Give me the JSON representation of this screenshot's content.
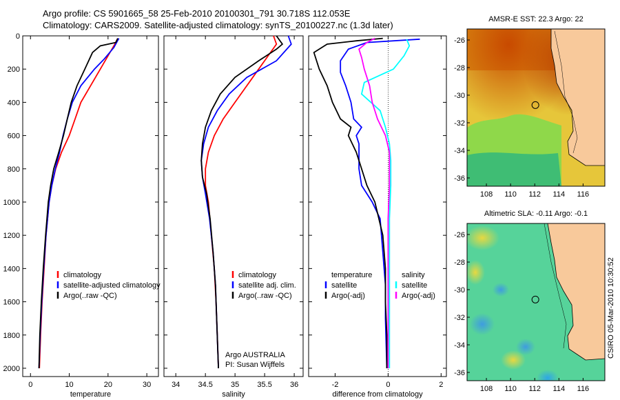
{
  "header": {
    "line1": "Argo profile: CS 5901665_58 25-Feb-2010 20100301_791 30.718S 112.053E",
    "line2": "Climatology: CARS2009. Satellite-adjusted climatology: synTS_20100227.nc (1.3d later)"
  },
  "side_text": "CSIRO 05-Mar-2010 10:30:52",
  "colors": {
    "clim": "#ff0000",
    "sat": "#0000ff",
    "argo": "#000000",
    "cyan": "#00ffff",
    "magenta": "#ff00ff"
  },
  "chart_data": [
    {
      "type": "line",
      "xlabel": "temperature",
      "xticks": [
        "0",
        "10",
        "20",
        "30"
      ],
      "xlim": [
        -2,
        33
      ],
      "ylim": [
        0,
        2050
      ],
      "yticks": [
        "0",
        "200",
        "400",
        "600",
        "800",
        "1000",
        "1200",
        "1400",
        "1600",
        "1800",
        "2000"
      ],
      "legend": [
        "climatology",
        "satellite-adjusted climatology",
        "Argo(..raw -QC)"
      ],
      "series": [
        {
          "name": "climatology",
          "color": "#ff0000",
          "points": [
            [
              22.5,
              15
            ],
            [
              21.5,
              60
            ],
            [
              20,
              120
            ],
            [
              18,
              200
            ],
            [
              15.5,
              300
            ],
            [
              13,
              400
            ],
            [
              11.5,
              500
            ],
            [
              10,
              600
            ],
            [
              8,
              700
            ],
            [
              6.5,
              800
            ],
            [
              5.5,
              900
            ],
            [
              4.8,
              1000
            ],
            [
              4,
              1200
            ],
            [
              3.5,
              1400
            ],
            [
              3,
              1600
            ],
            [
              2.6,
              1800
            ],
            [
              2.3,
              2000
            ]
          ]
        },
        {
          "name": "satellite-adjusted climatology",
          "color": "#0000ff",
          "points": [
            [
              22.8,
              15
            ],
            [
              21.5,
              70
            ],
            [
              19,
              140
            ],
            [
              16.5,
              200
            ],
            [
              13,
              300
            ],
            [
              10.8,
              400
            ],
            [
              9.5,
              500
            ],
            [
              8.4,
              600
            ],
            [
              7.5,
              700
            ],
            [
              6.4,
              800
            ],
            [
              5.5,
              900
            ],
            [
              4.8,
              1000
            ],
            [
              4,
              1200
            ],
            [
              3.4,
              1400
            ],
            [
              2.9,
              1600
            ],
            [
              2.5,
              1800
            ],
            [
              2.2,
              2000
            ]
          ]
        },
        {
          "name": "Argo(..raw -QC)",
          "color": "#000000",
          "points": [
            [
              22.5,
              15
            ],
            [
              22,
              40
            ],
            [
              18,
              60
            ],
            [
              16,
              100
            ],
            [
              14,
              200
            ],
            [
              12,
              300
            ],
            [
              10.5,
              400
            ],
            [
              9.5,
              500
            ],
            [
              8.5,
              600
            ],
            [
              7.3,
              700
            ],
            [
              6,
              800
            ],
            [
              5.2,
              900
            ],
            [
              4.6,
              1000
            ],
            [
              3.9,
              1200
            ],
            [
              3.3,
              1400
            ],
            [
              2.8,
              1600
            ],
            [
              2.4,
              1800
            ],
            [
              2.2,
              2000
            ]
          ]
        }
      ]
    },
    {
      "type": "line",
      "xlabel": "salinity",
      "xticks": [
        "34",
        "34.5",
        "35",
        "35.5",
        "36"
      ],
      "xlim": [
        33.8,
        36.15
      ],
      "ylim": [
        0,
        2050
      ],
      "legend": [
        "climatology",
        "satellite adj. clim.",
        "Argo(..raw -QC)"
      ],
      "annotation": [
        "Argo AUSTRALIA",
        "PI: Susan Wijffels"
      ],
      "series": [
        {
          "name": "climatology",
          "color": "#ff0000",
          "points": [
            [
              35.65,
              0
            ],
            [
              35.7,
              50
            ],
            [
              35.5,
              150
            ],
            [
              35.2,
              300
            ],
            [
              35.0,
              400
            ],
            [
              34.8,
              500
            ],
            [
              34.65,
              600
            ],
            [
              34.55,
              700
            ],
            [
              34.5,
              800
            ],
            [
              34.5,
              900
            ],
            [
              34.55,
              1000
            ],
            [
              34.6,
              1200
            ],
            [
              34.65,
              1400
            ],
            [
              34.68,
              1600
            ],
            [
              34.7,
              1800
            ],
            [
              34.72,
              2000
            ]
          ]
        },
        {
          "name": "satellite adj. clim.",
          "color": "#0000ff",
          "points": [
            [
              35.9,
              0
            ],
            [
              35.95,
              50
            ],
            [
              35.7,
              150
            ],
            [
              35.2,
              250
            ],
            [
              34.9,
              350
            ],
            [
              34.7,
              450
            ],
            [
              34.55,
              550
            ],
            [
              34.47,
              650
            ],
            [
              34.43,
              750
            ],
            [
              34.45,
              850
            ],
            [
              34.5,
              950
            ],
            [
              34.57,
              1100
            ],
            [
              34.63,
              1300
            ],
            [
              34.67,
              1500
            ],
            [
              34.69,
              1700
            ],
            [
              34.71,
              1900
            ],
            [
              34.72,
              2000
            ]
          ]
        },
        {
          "name": "Argo(..raw -QC)",
          "color": "#000000",
          "points": [
            [
              35.7,
              0
            ],
            [
              35.8,
              50
            ],
            [
              35.7,
              80
            ],
            [
              35.4,
              150
            ],
            [
              35.0,
              250
            ],
            [
              34.75,
              350
            ],
            [
              34.6,
              450
            ],
            [
              34.5,
              550
            ],
            [
              34.45,
              650
            ],
            [
              34.43,
              750
            ],
            [
              34.45,
              850
            ],
            [
              34.52,
              950
            ],
            [
              34.58,
              1100
            ],
            [
              34.63,
              1300
            ],
            [
              34.67,
              1500
            ],
            [
              34.69,
              1700
            ],
            [
              34.71,
              1900
            ],
            [
              34.72,
              2000
            ]
          ]
        }
      ]
    },
    {
      "type": "line",
      "xlabel": "difference from climatology",
      "xticks": [
        "-2",
        "0",
        "2"
      ],
      "xlim": [
        -3.0,
        2.2
      ],
      "ylim": [
        0,
        2050
      ],
      "legend_temperature": [
        "temperature",
        "satellite",
        "Argo(-adj)"
      ],
      "legend_salinity": [
        "salinity",
        "satellite",
        "Argo(-adj)"
      ],
      "series": [
        {
          "name": "temperature satellite",
          "color": "#0000ff",
          "points": [
            [
              1.2,
              20
            ],
            [
              -0.8,
              40
            ],
            [
              -1.5,
              80
            ],
            [
              -1.8,
              150
            ],
            [
              -1.8,
              220
            ],
            [
              -1.6,
              300
            ],
            [
              -1.4,
              400
            ],
            [
              -1.3,
              500
            ],
            [
              -1.0,
              550
            ],
            [
              -1.2,
              600
            ],
            [
              -1.1,
              650
            ],
            [
              -1.1,
              800
            ],
            [
              -1.0,
              900
            ],
            [
              -0.6,
              1000
            ],
            [
              -0.3,
              1100
            ],
            [
              -0.2,
              1300
            ],
            [
              -0.1,
              1500
            ],
            [
              -0.1,
              1700
            ],
            [
              -0.05,
              2000
            ]
          ]
        },
        {
          "name": "temperature Argo(-adj)",
          "color": "#000000",
          "points": [
            [
              -0.2,
              15
            ],
            [
              -1.2,
              30
            ],
            [
              -2.3,
              50
            ],
            [
              -2.8,
              100
            ],
            [
              -2.6,
              200
            ],
            [
              -2.3,
              300
            ],
            [
              -2.1,
              400
            ],
            [
              -1.8,
              500
            ],
            [
              -1.4,
              550
            ],
            [
              -1.5,
              600
            ],
            [
              -1.2,
              700
            ],
            [
              -1.0,
              800
            ],
            [
              -0.8,
              900
            ],
            [
              -0.5,
              1000
            ],
            [
              -0.2,
              1200
            ],
            [
              -0.1,
              1400
            ],
            [
              -0.1,
              1600
            ],
            [
              -0.05,
              1800
            ],
            [
              -0.05,
              2000
            ]
          ]
        },
        {
          "name": "salinity satellite",
          "color": "#00ffff",
          "points": [
            [
              0.7,
              20
            ],
            [
              0.8,
              60
            ],
            [
              0.6,
              120
            ],
            [
              0.2,
              200
            ],
            [
              -0.9,
              280
            ],
            [
              -1.0,
              350
            ],
            [
              -0.3,
              450
            ],
            [
              -0.1,
              550
            ],
            [
              0.05,
              650
            ],
            [
              0.1,
              750
            ],
            [
              0.1,
              900
            ],
            [
              0.05,
              1100
            ],
            [
              0.05,
              1400
            ],
            [
              0.05,
              1700
            ],
            [
              0.05,
              2000
            ]
          ]
        },
        {
          "name": "salinity Argo(-adj)",
          "color": "#ff00ff",
          "points": [
            [
              -0.5,
              15
            ],
            [
              -0.8,
              40
            ],
            [
              -1.1,
              80
            ],
            [
              -1.0,
              130
            ],
            [
              -0.9,
              200
            ],
            [
              -0.7,
              300
            ],
            [
              -0.6,
              400
            ],
            [
              -0.4,
              500
            ],
            [
              -0.1,
              600
            ],
            [
              0.05,
              700
            ],
            [
              0.05,
              900
            ],
            [
              0.0,
              1100
            ],
            [
              0.0,
              1400
            ],
            [
              0.0,
              1700
            ],
            [
              0.0,
              2000
            ]
          ]
        }
      ]
    }
  ],
  "maps": [
    {
      "title": "AMSR-E SST: 22.3 Argo: 22",
      "lon_ticks": [
        "108",
        "110",
        "112",
        "114",
        "116"
      ],
      "lat_ticks": [
        "-26",
        "-28",
        "-30",
        "-32",
        "-34",
        "-36"
      ],
      "lon_range": [
        106.4,
        117.8
      ],
      "lat_range": [
        -25.2,
        -36.6
      ],
      "float_position": {
        "lon": 112.053,
        "lat": -30.718
      }
    },
    {
      "title": "Altimetric SLA: -0.11 Argo: -0.1",
      "lon_ticks": [
        "108",
        "110",
        "112",
        "114",
        "116"
      ],
      "lat_ticks": [
        "-26",
        "-28",
        "-30",
        "-32",
        "-34",
        "-36"
      ],
      "lon_range": [
        106.4,
        117.8
      ],
      "lat_range": [
        -25.2,
        -36.6
      ],
      "float_position": {
        "lon": 112.053,
        "lat": -30.718
      }
    }
  ]
}
